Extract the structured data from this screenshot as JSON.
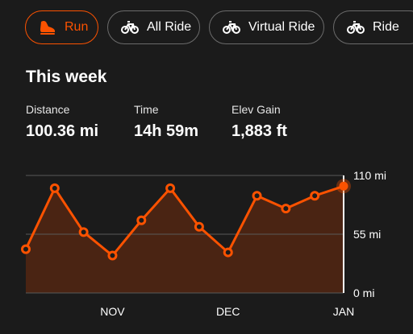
{
  "filters": [
    {
      "label": "Run",
      "icon": "shoe-icon",
      "active": true
    },
    {
      "label": "All Ride",
      "icon": "bicycle-icon",
      "active": false
    },
    {
      "label": "Virtual Ride",
      "icon": "bicycle-icon",
      "active": false
    },
    {
      "label": "Ride",
      "icon": "bicycle-icon",
      "active": false
    }
  ],
  "summary": {
    "title": "This week",
    "stats": [
      {
        "label": "Distance",
        "value": "100.36 mi"
      },
      {
        "label": "Time",
        "value": "14h 59m"
      },
      {
        "label": "Elev Gain",
        "value": "1,883 ft"
      }
    ]
  },
  "colors": {
    "accent": "#fc5200",
    "fill": "#4a2413",
    "grid": "#5a5a5a",
    "text": "#ffffff"
  },
  "chart_data": {
    "type": "area",
    "y_unit": "mi",
    "ylim": [
      0,
      110
    ],
    "yticks": [
      "110 mi",
      "55 mi",
      "0 mi"
    ],
    "ytick_values": [
      110,
      55,
      0
    ],
    "xtick_labels": [
      "NOV",
      "DEC",
      "JAN"
    ],
    "xtick_weeks": [
      3,
      7,
      11
    ],
    "series": [
      {
        "values": [
          41,
          98,
          57,
          35,
          68,
          98,
          62,
          38,
          91,
          79,
          91,
          100
        ]
      }
    ],
    "highlight_last": true
  }
}
